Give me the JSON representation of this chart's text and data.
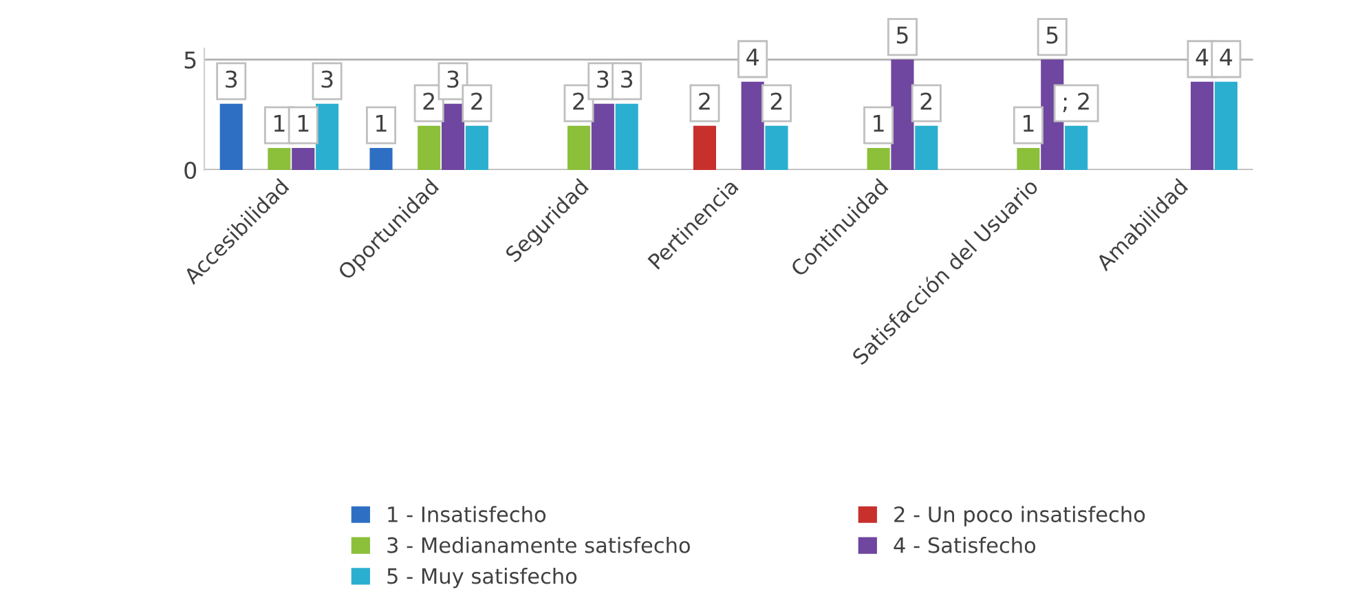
{
  "chart_data": {
    "type": "bar",
    "categories": [
      "Accesibilidad",
      "Oportunidad",
      "Seguridad",
      "Pertinencia",
      "Continuidad",
      "Satisfacción del Usuario",
      "Amabilidad"
    ],
    "series": [
      {
        "name": "1 - Insatisfecho",
        "color": "#2e6fc4",
        "values": [
          3,
          1,
          null,
          null,
          null,
          null,
          null
        ],
        "value_labels": [
          "3",
          "1",
          null,
          null,
          null,
          null,
          null
        ]
      },
      {
        "name": "2 - Un poco insatisfecho",
        "color": "#c8302c",
        "values": [
          null,
          null,
          null,
          2,
          null,
          null,
          null
        ],
        "value_labels": [
          null,
          null,
          null,
          "2",
          null,
          null,
          null
        ]
      },
      {
        "name": "3 - Medianamente satisfecho",
        "color": "#8cbf3a",
        "values": [
          1,
          2,
          2,
          null,
          1,
          1,
          null
        ],
        "value_labels": [
          "1",
          "2",
          "2",
          null,
          "1",
          "1",
          null
        ]
      },
      {
        "name": "4 - Satisfecho",
        "color": "#6f46a0",
        "values": [
          1,
          3,
          3,
          4,
          5,
          5,
          4
        ],
        "value_labels": [
          "1",
          "3",
          "3",
          "4",
          "5",
          "5",
          "4"
        ]
      },
      {
        "name": "5 - Muy satisfecho",
        "color": "#2bafd0",
        "values": [
          3,
          2,
          3,
          2,
          2,
          2,
          4
        ],
        "value_labels": [
          "3",
          "2",
          "3",
          "2",
          "2",
          "; 2",
          "4"
        ]
      }
    ],
    "ylim": [
      0,
      5.5
    ],
    "yticks": [
      0,
      5
    ],
    "grid": "y",
    "legend": "bottom"
  }
}
